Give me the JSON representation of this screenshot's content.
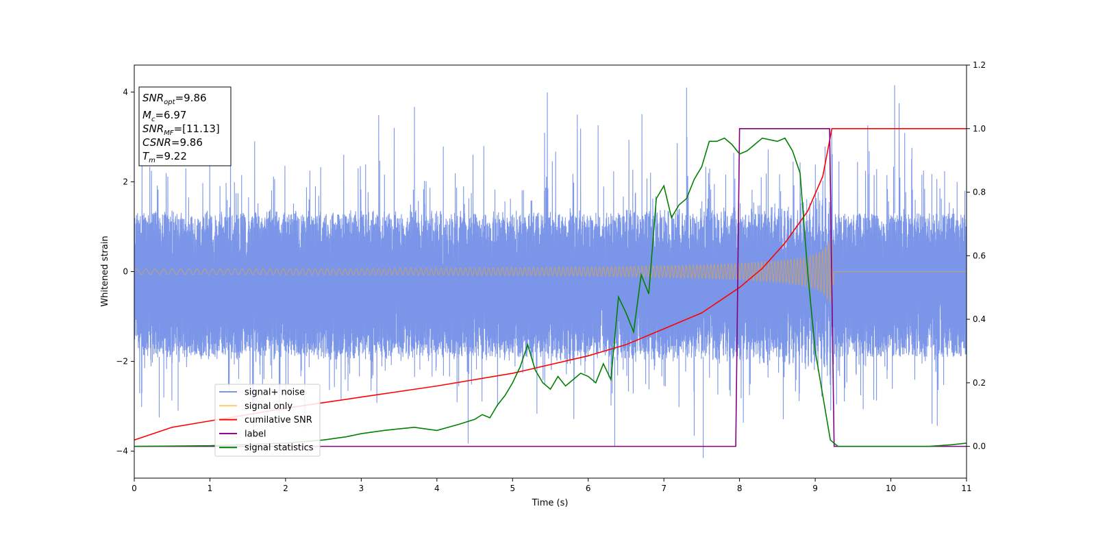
{
  "chart_data": {
    "type": "line",
    "xlabel": "Time (s)",
    "ylabel": "Whitened strain",
    "xlim": [
      0,
      11
    ],
    "ylim_left": [
      -4.6,
      4.6
    ],
    "ylim_right": [
      -0.1,
      1.2
    ],
    "x_ticks": [
      0,
      1,
      2,
      3,
      4,
      5,
      6,
      7,
      8,
      9,
      10,
      11
    ],
    "y_ticks_left": [
      -4,
      -2,
      0,
      2,
      4
    ],
    "y_ticks_right": [
      "0.0",
      "0.2",
      "0.4",
      "0.6",
      "0.8",
      "1.0",
      "1.2"
    ],
    "grid": false,
    "legend_position": "lower-left",
    "legend": [
      {
        "label": "signal+ noise",
        "color": "#7b96e8"
      },
      {
        "label": "signal only",
        "color": "#ffc870"
      },
      {
        "label": "cumilative SNR",
        "color": "#ff0000"
      },
      {
        "label": "label",
        "color": "#800080"
      },
      {
        "label": "signal statistics",
        "color": "#008000"
      }
    ],
    "annotation": {
      "lines": [
        {
          "base": "SNR",
          "sub": "opt",
          "value": "=9.86"
        },
        {
          "base": "M",
          "sub": "c",
          "value": "=6.97"
        },
        {
          "base": "SNR",
          "sub": "MF",
          "value": "=[11.13]"
        },
        {
          "base": "CSNR",
          "sub": "",
          "value": "=9.86"
        },
        {
          "base": "T",
          "sub": "m",
          "value": "=9.22"
        }
      ]
    },
    "series": [
      {
        "name": "signal+ noise",
        "axis": "left",
        "color": "#7b96e8",
        "kind": "noise_band",
        "typical_range": [
          -1.9,
          1.3
        ],
        "notable_peaks": [
          [
            7.3,
            4.1
          ],
          [
            10.05,
            4.15
          ],
          [
            7.52,
            -4.15
          ],
          [
            6.35,
            -3.9
          ],
          [
            0.33,
            -3.25
          ],
          [
            0.58,
            -3.1
          ]
        ]
      },
      {
        "name": "signal only",
        "axis": "left",
        "color": "#c8a070",
        "kind": "chirp_envelope",
        "x": [
          0,
          2,
          4,
          5,
          6,
          7,
          7.5,
          8,
          8.5,
          8.8,
          9.0,
          9.1,
          9.2,
          9.22,
          9.25,
          11
        ],
        "amplitude": [
          0.06,
          0.07,
          0.08,
          0.09,
          0.1,
          0.13,
          0.15,
          0.18,
          0.24,
          0.3,
          0.38,
          0.48,
          0.7,
          0.75,
          0.0,
          0.0
        ]
      },
      {
        "name": "cumilative SNR",
        "axis": "right",
        "color": "#ff0000",
        "x": [
          0,
          0.5,
          1,
          2,
          3,
          4,
          5,
          6,
          6.5,
          7,
          7.5,
          8,
          8.3,
          8.6,
          8.9,
          9.1,
          9.22,
          9.25,
          11
        ],
        "values": [
          0.02,
          0.06,
          0.08,
          0.12,
          0.155,
          0.19,
          0.23,
          0.285,
          0.32,
          0.37,
          0.42,
          0.5,
          0.56,
          0.64,
          0.74,
          0.85,
          1.0,
          1.0,
          1.0
        ]
      },
      {
        "name": "label",
        "axis": "right",
        "color": "#800080",
        "x": [
          0,
          7.95,
          8.0,
          9.19,
          9.25,
          11
        ],
        "values": [
          0,
          0,
          1,
          1,
          0,
          0
        ]
      },
      {
        "name": "signal statistics",
        "axis": "right",
        "color": "#008000",
        "x": [
          0,
          1,
          2,
          2.5,
          2.8,
          3.0,
          3.3,
          3.5,
          3.7,
          4.0,
          4.3,
          4.5,
          4.6,
          4.7,
          4.8,
          4.9,
          5.0,
          5.1,
          5.2,
          5.3,
          5.4,
          5.5,
          5.6,
          5.7,
          5.8,
          5.9,
          6.0,
          6.1,
          6.2,
          6.3,
          6.4,
          6.5,
          6.6,
          6.7,
          6.8,
          6.9,
          7.0,
          7.1,
          7.2,
          7.3,
          7.4,
          7.5,
          7.6,
          7.7,
          7.8,
          7.9,
          8.0,
          8.1,
          8.2,
          8.3,
          8.5,
          8.6,
          8.7,
          8.8,
          8.9,
          9.0,
          9.1,
          9.2,
          9.3,
          9.5,
          10.0,
          10.5,
          10.8,
          11
        ],
        "values": [
          0,
          0.002,
          0.01,
          0.02,
          0.03,
          0.04,
          0.05,
          0.055,
          0.06,
          0.05,
          0.07,
          0.085,
          0.1,
          0.09,
          0.13,
          0.16,
          0.2,
          0.25,
          0.32,
          0.24,
          0.2,
          0.18,
          0.22,
          0.19,
          0.21,
          0.23,
          0.22,
          0.2,
          0.26,
          0.21,
          0.47,
          0.42,
          0.36,
          0.54,
          0.48,
          0.78,
          0.82,
          0.72,
          0.76,
          0.78,
          0.84,
          0.88,
          0.96,
          0.96,
          0.97,
          0.95,
          0.92,
          0.93,
          0.95,
          0.97,
          0.96,
          0.97,
          0.93,
          0.86,
          0.55,
          0.3,
          0.16,
          0.02,
          0.0,
          0.0,
          0.0,
          0.0,
          0.005,
          0.01
        ]
      }
    ]
  }
}
